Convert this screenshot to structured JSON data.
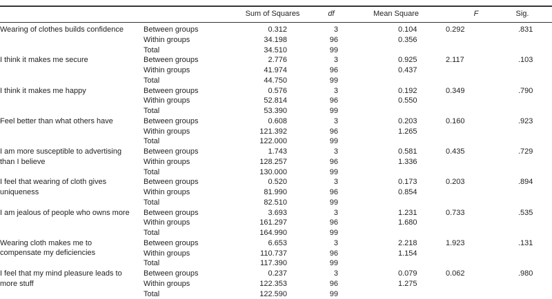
{
  "headers": {
    "sum_of_squares": "Sum of Squares",
    "df": "df",
    "mean_square": "Mean Square",
    "f": "F",
    "sig": "Sig."
  },
  "items": [
    {
      "label": "Wearing of clothes builds confidence",
      "rows": [
        {
          "group": "Between groups",
          "ss": "0.312",
          "df": "3",
          "ms": "0.104",
          "f": "0.292",
          "sig": ".831"
        },
        {
          "group": "Within groups",
          "ss": "34.198",
          "df": "96",
          "ms": "0.356"
        },
        {
          "group": "Total",
          "ss": "34.510",
          "df": "99"
        }
      ]
    },
    {
      "label": "I think it makes me secure",
      "rows": [
        {
          "group": "Between groups",
          "ss": "2.776",
          "df": "3",
          "ms": "0.925",
          "f": "2.117",
          "sig": ".103"
        },
        {
          "group": "Within groups",
          "ss": "41.974",
          "df": "96",
          "ms": "0.437"
        },
        {
          "group": "Total",
          "ss": "44.750",
          "df": "99"
        }
      ]
    },
    {
      "label": "I think it makes me happy",
      "rows": [
        {
          "group": "Between groups",
          "ss": "0.576",
          "df": "3",
          "ms": "0.192",
          "f": "0.349",
          "sig": ".790"
        },
        {
          "group": "Within groups",
          "ss": "52.814",
          "df": "96",
          "ms": "0.550"
        },
        {
          "group": "Total",
          "ss": "53.390",
          "df": "99"
        }
      ]
    },
    {
      "label": "Feel better than what others have",
      "rows": [
        {
          "group": "Between groups",
          "ss": "0.608",
          "df": "3",
          "ms": "0.203",
          "f": "0.160",
          "sig": ".923"
        },
        {
          "group": "Within groups",
          "ss": "121.392",
          "df": "96",
          "ms": "1.265"
        },
        {
          "group": "Total",
          "ss": "122.000",
          "df": "99"
        }
      ]
    },
    {
      "label": "I am more susceptible to advertising than I believe",
      "rows": [
        {
          "group": "Between groups",
          "ss": "1.743",
          "df": "3",
          "ms": "0.581",
          "f": "0.435",
          "sig": ".729"
        },
        {
          "group": "Within groups",
          "ss": "128.257",
          "df": "96",
          "ms": "1.336"
        },
        {
          "group": "Total",
          "ss": "130.000",
          "df": "99"
        }
      ]
    },
    {
      "label": "I feel that wearing of cloth gives uniqueness",
      "rows": [
        {
          "group": "Between groups",
          "ss": "0.520",
          "df": "3",
          "ms": "0.173",
          "f": "0.203",
          "sig": ".894"
        },
        {
          "group": "Within groups",
          "ss": "81.990",
          "df": "96",
          "ms": "0.854"
        },
        {
          "group": "Total",
          "ss": "82.510",
          "df": "99"
        }
      ]
    },
    {
      "label": "I am jealous of people who owns more",
      "rows": [
        {
          "group": "Between groups",
          "ss": "3.693",
          "df": "3",
          "ms": "1.231",
          "f": "0.733",
          "sig": ".535"
        },
        {
          "group": "Within groups",
          "ss": "161.297",
          "df": "96",
          "ms": "1.680"
        },
        {
          "group": "Total",
          "ss": "164.990",
          "df": "99"
        }
      ]
    },
    {
      "label": "Wearing cloth makes me to compensate my deficiencies",
      "rows": [
        {
          "group": "Between groups",
          "ss": "6.653",
          "df": "3",
          "ms": "2.218",
          "f": "1.923",
          "sig": ".131"
        },
        {
          "group": "Within groups",
          "ss": "110.737",
          "df": "96",
          "ms": "1.154"
        },
        {
          "group": "Total",
          "ss": "117.390",
          "df": "99"
        }
      ]
    },
    {
      "label": "I feel that my mind pleasure leads to more stuff",
      "rows": [
        {
          "group": "Between groups",
          "ss": "0.237",
          "df": "3",
          "ms": "0.079",
          "f": "0.062",
          "sig": ".980"
        },
        {
          "group": "Within groups",
          "ss": "122.353",
          "df": "96",
          "ms": "1.275"
        },
        {
          "group": "Total",
          "ss": "122.590",
          "df": "99"
        }
      ]
    }
  ]
}
